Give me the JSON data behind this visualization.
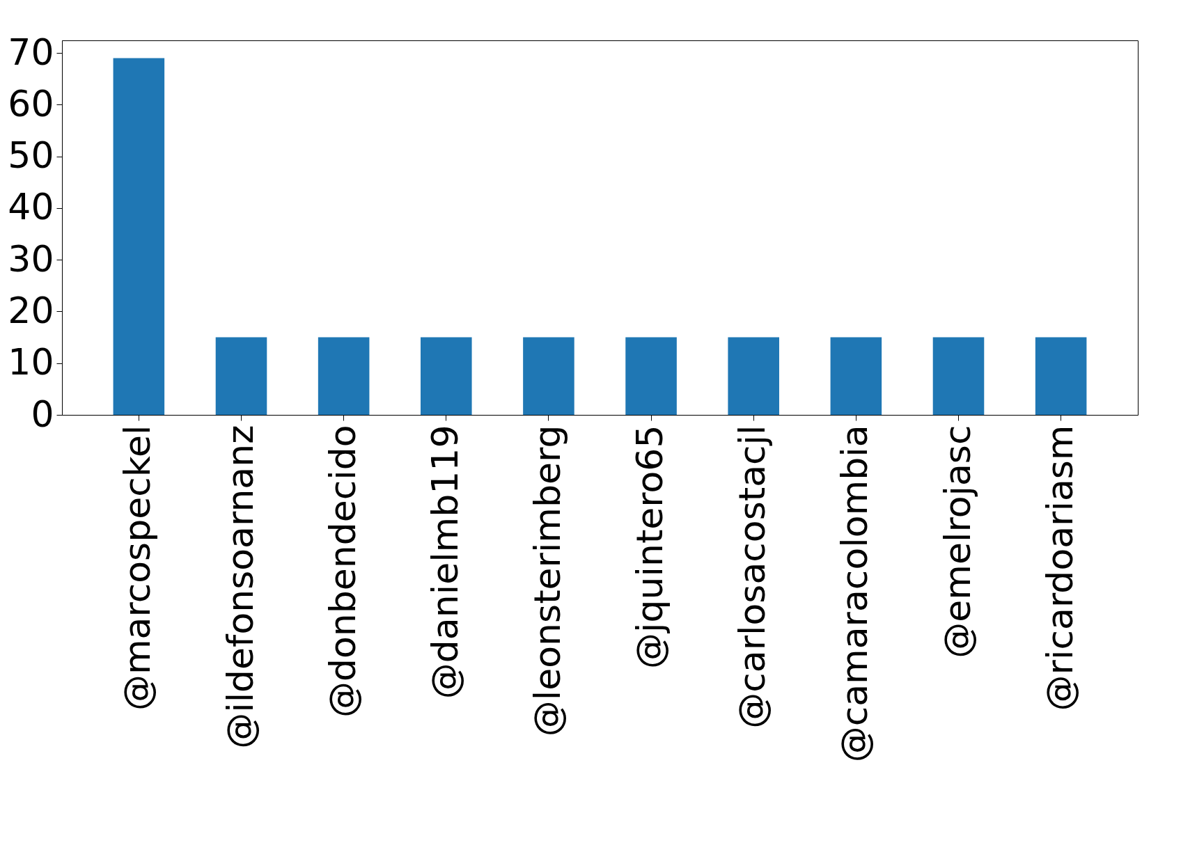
{
  "chart_data": {
    "type": "bar",
    "categories": [
      "@marcospeckel",
      "@ildefonsoarnanz",
      "@donbendecido",
      "@danielmb119",
      "@leonsterimberg",
      "@jquintero65",
      "@carlosacostacjl",
      "@camaracolombia",
      "@emelrojasc",
      "@ricardoariasm"
    ],
    "values": [
      69,
      15,
      15,
      15,
      15,
      15,
      15,
      15,
      15,
      15
    ],
    "color": "#1f77b4",
    "ylim": [
      0,
      72.45
    ],
    "yticks": [
      0,
      10,
      20,
      30,
      40,
      50,
      60,
      70
    ],
    "grid": false
  }
}
